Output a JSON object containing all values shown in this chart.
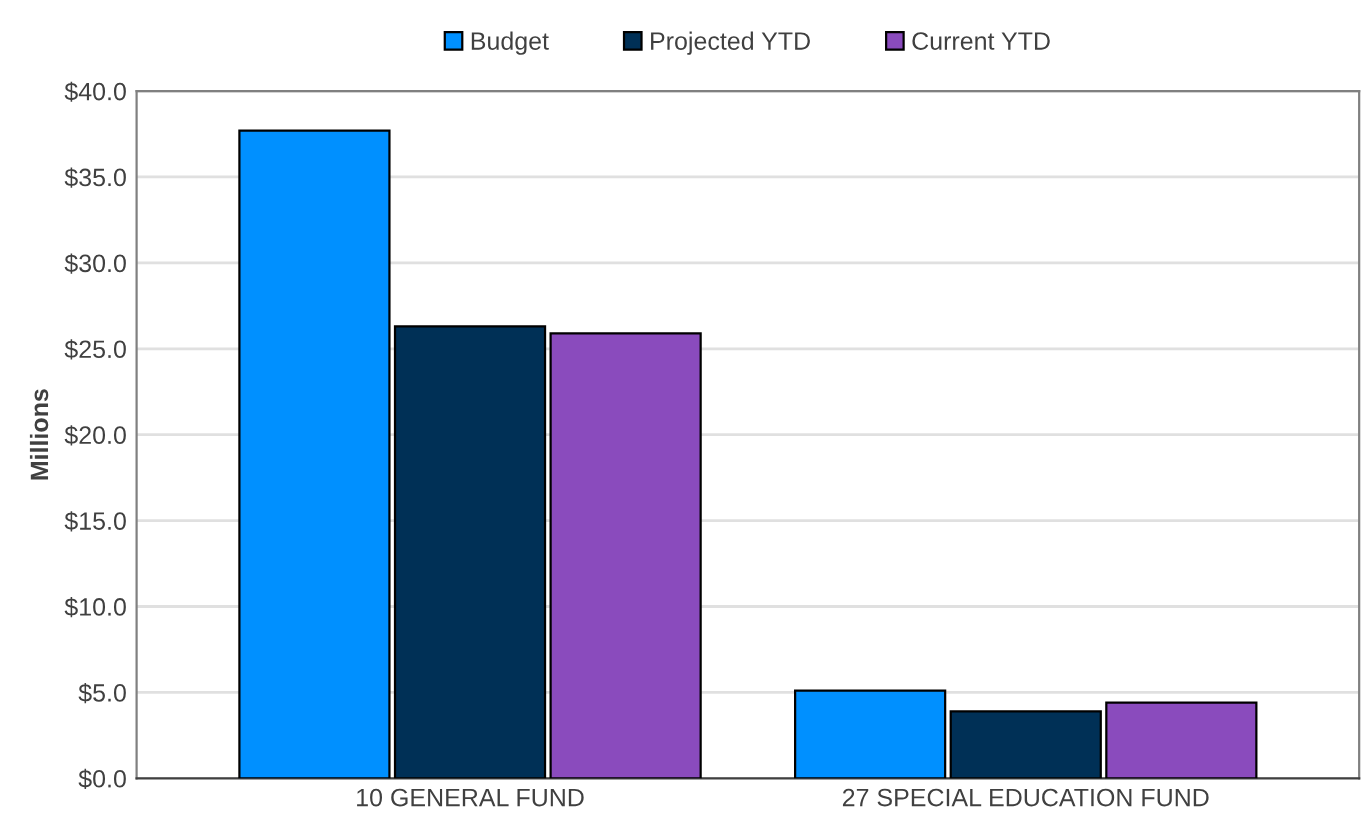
{
  "chart_data": {
    "type": "bar",
    "ylabel": "Millions",
    "categories": [
      "10 GENERAL FUND",
      "27 SPECIAL EDUCATION FUND"
    ],
    "series": [
      {
        "name": "Budget",
        "color": "#0090ff",
        "values": [
          37.7,
          5.1
        ]
      },
      {
        "name": "Projected YTD",
        "color": "#003056",
        "values": [
          26.3,
          3.9
        ]
      },
      {
        "name": "Current YTD",
        "color": "#8a4bbd",
        "values": [
          25.9,
          4.4
        ]
      }
    ],
    "ylim": [
      0,
      40
    ],
    "yticks": [
      {
        "value": 0,
        "label": "$0.0"
      },
      {
        "value": 5,
        "label": "$5.0"
      },
      {
        "value": 10,
        "label": "$10.0"
      },
      {
        "value": 15,
        "label": "$15.0"
      },
      {
        "value": 20,
        "label": "$20.0"
      },
      {
        "value": 25,
        "label": "$25.0"
      },
      {
        "value": 30,
        "label": "$30.0"
      },
      {
        "value": 35,
        "label": "$35.0"
      },
      {
        "value": 40,
        "label": "$40.0"
      }
    ],
    "grid": "y",
    "legend": "top"
  }
}
